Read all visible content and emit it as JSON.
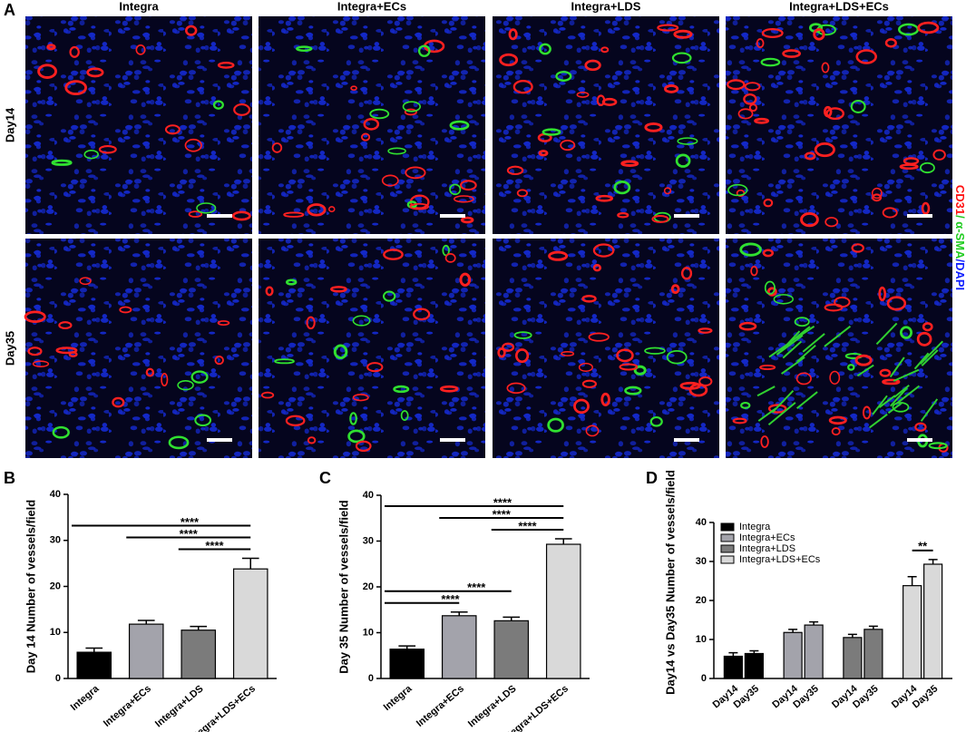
{
  "panel_labels": [
    "A",
    "B",
    "C",
    "D"
  ],
  "micrographs": {
    "columns": [
      "Integra",
      "Integra+ECs",
      "Integra+LDS",
      "Integra+LDS+ECs"
    ],
    "rows": [
      "Day14",
      "Day35"
    ],
    "stain": [
      {
        "text": "CD31",
        "color": "#ff1010"
      },
      {
        "text": "/ α-SMA",
        "color": "#22cc22"
      },
      {
        "text": "/DAPI",
        "color": "#1020ff"
      }
    ]
  },
  "chart_data": [
    {
      "type": "bar",
      "ylabel": "Day 14 Number of vessels/field",
      "categories": [
        "Integra",
        "Integra+ECs",
        "Integra+LDS",
        "Integra+LDS+ECs"
      ],
      "values": [
        5.7,
        11.8,
        10.5,
        23.8
      ],
      "errors": [
        0.9,
        0.8,
        0.8,
        2.3
      ],
      "colors": [
        "#000000",
        "#a3a3ab",
        "#7b7b7b",
        "#d9d9d9"
      ],
      "ylim": [
        0,
        40
      ],
      "yticks": [
        0,
        10,
        20,
        30,
        40
      ],
      "significance": [
        {
          "from": 0,
          "to": 3,
          "label": "****"
        },
        {
          "from": 1,
          "to": 3,
          "label": "****"
        },
        {
          "from": 2,
          "to": 3,
          "label": "****"
        }
      ]
    },
    {
      "type": "bar",
      "ylabel": "Day 35 Number of vessels/field",
      "categories": [
        "Integra",
        "Integra+ECs",
        "Integra+LDS",
        "Integra+LDS+ECs"
      ],
      "values": [
        6.4,
        13.7,
        12.6,
        29.3
      ],
      "errors": [
        0.7,
        0.8,
        0.8,
        1.2
      ],
      "colors": [
        "#000000",
        "#a3a3ab",
        "#7b7b7b",
        "#d9d9d9"
      ],
      "ylim": [
        0,
        40
      ],
      "yticks": [
        0,
        10,
        20,
        30,
        40
      ],
      "significance": [
        {
          "from": 0,
          "to": 3,
          "label": "****"
        },
        {
          "from": 1,
          "to": 3,
          "label": "****"
        },
        {
          "from": 2,
          "to": 3,
          "label": "****"
        },
        {
          "from": 0,
          "to": 2,
          "label": "****"
        },
        {
          "from": 0,
          "to": 1,
          "label": "****"
        }
      ]
    },
    {
      "type": "grouped_bar",
      "ylabel": "Day14 vs Day35 Number of vessels/field",
      "categories": [
        "Day14",
        "Day35"
      ],
      "series": [
        {
          "name": "Integra",
          "color": "#000000",
          "values": [
            5.7,
            6.4
          ],
          "errors": [
            0.9,
            0.7
          ]
        },
        {
          "name": "Integra+ECs",
          "color": "#a3a3ab",
          "values": [
            11.8,
            13.7
          ],
          "errors": [
            0.8,
            0.8
          ]
        },
        {
          "name": "Integra+LDS",
          "color": "#7b7b7b",
          "values": [
            10.5,
            12.6
          ],
          "errors": [
            0.8,
            0.8
          ]
        },
        {
          "name": "Integra+LDS+ECs",
          "color": "#d9d9d9",
          "values": [
            23.8,
            29.3
          ],
          "errors": [
            2.3,
            1.2
          ]
        }
      ],
      "ylim": [
        0,
        40
      ],
      "yticks": [
        0,
        10,
        20,
        30,
        40
      ],
      "legend": "upper-left",
      "significance": [
        {
          "series": 3,
          "label": "**"
        }
      ]
    }
  ]
}
